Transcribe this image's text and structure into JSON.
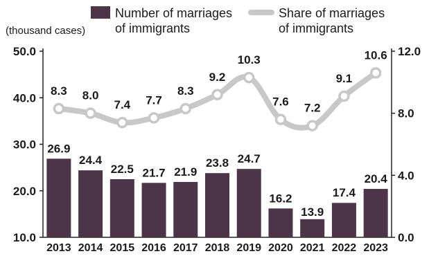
{
  "chart_data": {
    "type": "bar+line",
    "y_unit_label": "(thousand cases)",
    "categories": [
      "2013",
      "2014",
      "2015",
      "2016",
      "2017",
      "2018",
      "2019",
      "2020",
      "2021",
      "2022",
      "2023"
    ],
    "series": [
      {
        "name": "Number of marriages of immigrants",
        "name_lines": [
          "Number of marriages",
          "of immigrants"
        ],
        "type": "bar",
        "axis": "left",
        "color": "#4b3546",
        "values": [
          26.9,
          24.4,
          22.5,
          21.7,
          21.9,
          23.8,
          24.7,
          16.2,
          13.9,
          17.4,
          20.4
        ]
      },
      {
        "name": "Share of marriages of immigrants",
        "name_lines": [
          "Share of marriages",
          "of immigrants"
        ],
        "type": "line",
        "axis": "right",
        "color": "#c8c8c8",
        "values": [
          8.3,
          8.0,
          7.4,
          7.7,
          8.3,
          9.2,
          10.3,
          7.6,
          7.2,
          9.1,
          10.6
        ]
      }
    ],
    "left_axis": {
      "range": [
        10,
        50
      ],
      "ticks": [
        "10.0",
        "20.0",
        "30.0",
        "40.0",
        "50.0"
      ]
    },
    "right_axis": {
      "range": [
        0,
        12
      ],
      "ticks": [
        "0.0",
        "4.0",
        "8.0",
        "12.0"
      ]
    },
    "legend_position": "top",
    "grid": false
  }
}
